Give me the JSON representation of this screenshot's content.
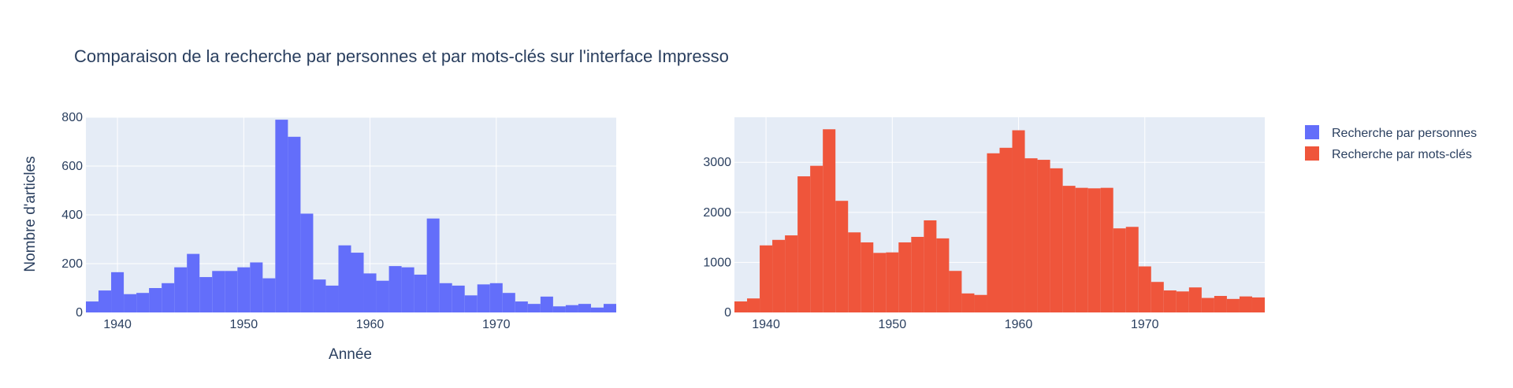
{
  "chart_data": {
    "type": "bar",
    "title": "Comparaison de la recherche par personnes et par mots-clés sur l'interface Impresso",
    "xlabel": "Année",
    "ylabel": "Nombre d'articles",
    "grid": true,
    "legend_position": "top-right",
    "bin_width": 1,
    "x": [
      1938,
      1939,
      1940,
      1941,
      1942,
      1943,
      1944,
      1945,
      1946,
      1947,
      1948,
      1949,
      1950,
      1951,
      1952,
      1953,
      1954,
      1955,
      1956,
      1957,
      1958,
      1959,
      1960,
      1961,
      1962,
      1963,
      1964,
      1965,
      1966,
      1967,
      1968,
      1969,
      1970,
      1971,
      1972,
      1973,
      1974,
      1975,
      1976,
      1977,
      1978,
      1979
    ],
    "x_ticks": [
      1940,
      1950,
      1960,
      1970
    ],
    "xlim": [
      1937.5,
      1979.5
    ],
    "panels": [
      {
        "series_name": "Recherche par personnes",
        "color": "#636efa",
        "ylim": [
          0,
          800
        ],
        "y_ticks": [
          0,
          200,
          400,
          600,
          800
        ],
        "values": [
          45,
          90,
          165,
          75,
          80,
          100,
          120,
          185,
          240,
          145,
          170,
          170,
          185,
          205,
          140,
          790,
          720,
          405,
          135,
          110,
          275,
          245,
          160,
          130,
          190,
          185,
          155,
          385,
          120,
          110,
          70,
          115,
          120,
          80,
          45,
          35,
          65,
          25,
          30,
          35,
          20,
          35
        ]
      },
      {
        "series_name": "Recherche par mots-clés",
        "color": "#ef553b",
        "ylim": [
          0,
          3900
        ],
        "y_ticks": [
          0,
          1000,
          2000,
          3000
        ],
        "values": [
          220,
          280,
          1340,
          1450,
          1540,
          2720,
          2930,
          3660,
          2230,
          1600,
          1400,
          1190,
          1200,
          1400,
          1510,
          1840,
          1480,
          830,
          380,
          350,
          3180,
          3290,
          3640,
          3080,
          3050,
          2880,
          2530,
          2490,
          2480,
          2490,
          1680,
          1710,
          920,
          610,
          440,
          420,
          500,
          290,
          330,
          270,
          320,
          300
        ]
      }
    ]
  }
}
